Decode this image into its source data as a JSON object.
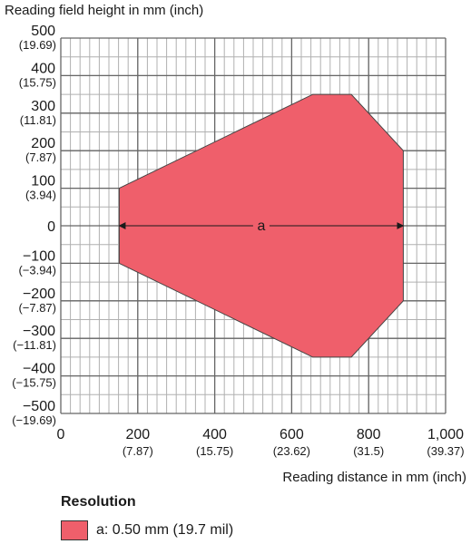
{
  "chart_data": {
    "type": "area",
    "title": "",
    "ylabel": "Reading field height in mm (inch)",
    "xlabel": "Reading distance in mm (inch)",
    "xlim": [
      0,
      1000
    ],
    "ylim": [
      -500,
      500
    ],
    "grid": true,
    "x_ticks": [
      {
        "value": 0,
        "label": "0",
        "sub": ""
      },
      {
        "value": 200,
        "label": "200",
        "sub": "(7.87)"
      },
      {
        "value": 400,
        "label": "400",
        "sub": "(15.75)"
      },
      {
        "value": 600,
        "label": "600",
        "sub": "(23.62)"
      },
      {
        "value": 800,
        "label": "800",
        "sub": "(31.5)"
      },
      {
        "value": 1000,
        "label": "1,000",
        "sub": "(39.37)"
      }
    ],
    "y_ticks": [
      {
        "value": 500,
        "label": "500",
        "sub": "(19.69)"
      },
      {
        "value": 400,
        "label": "400",
        "sub": "(15.75)"
      },
      {
        "value": 300,
        "label": "300",
        "sub": "(11.81)"
      },
      {
        "value": 200,
        "label": "200",
        "sub": "(7.87)"
      },
      {
        "value": 100,
        "label": "100",
        "sub": "(3.94)"
      },
      {
        "value": 0,
        "label": "0",
        "sub": ""
      },
      {
        "value": -100,
        "label": "−100",
        "sub": "(−3.94)"
      },
      {
        "value": -200,
        "label": "−200",
        "sub": "(−7.87)"
      },
      {
        "value": -300,
        "label": "−300",
        "sub": "(−11.81)"
      },
      {
        "value": -400,
        "label": "−400",
        "sub": "(−15.75)"
      },
      {
        "value": -500,
        "label": "−500",
        "sub": "(−19.69)"
      }
    ],
    "series": [
      {
        "name": "a: 0.50 mm (19.7 mil)",
        "color": "#ef5f6b",
        "points": [
          {
            "x": 152,
            "y": 100
          },
          {
            "x": 655,
            "y": 350
          },
          {
            "x": 755,
            "y": 350
          },
          {
            "x": 890,
            "y": 200
          },
          {
            "x": 890,
            "y": -200
          },
          {
            "x": 755,
            "y": -350
          },
          {
            "x": 655,
            "y": -350
          },
          {
            "x": 152,
            "y": -100
          }
        ]
      }
    ],
    "annotations": [
      {
        "text": "a",
        "x_from": 152,
        "x_to": 890,
        "y": 0
      }
    ]
  },
  "legend": {
    "title": "Resolution",
    "items": [
      {
        "label": "a: 0.50 mm (19.7 mil)",
        "color": "#ef5f6b"
      }
    ]
  }
}
